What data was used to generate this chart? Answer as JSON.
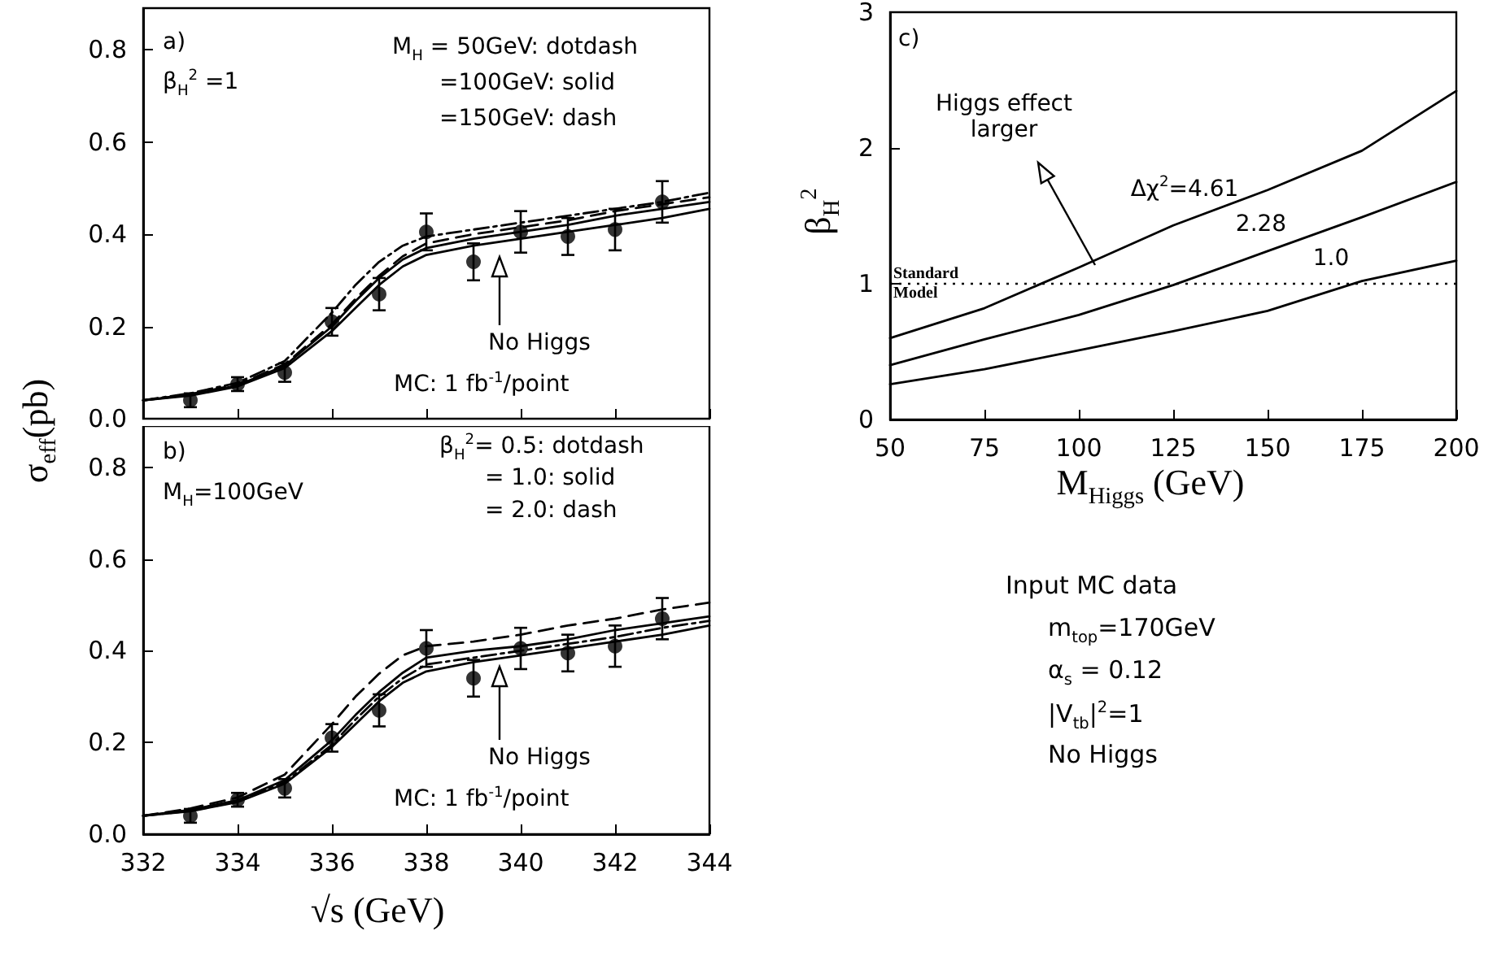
{
  "chart_data": [
    {
      "type": "line",
      "xlim": [
        332,
        344
      ],
      "xticks": [
        332,
        334,
        336,
        338,
        340,
        342,
        344
      ],
      "ylim": [
        0,
        0.89
      ],
      "yticks": [
        {
          "value": 0,
          "label": "0.0"
        },
        0.2,
        0.4,
        0.6,
        0.8
      ],
      "ylabel": "σ$_{eff}$(pb)",
      "tick_labels": "y",
      "annotations": [
        "a)",
        "β$_{H}$$^{2}$ =1",
        "M$_{H}$ = 50GeV: dotdash",
        "=100GeV: solid",
        "=150GeV: dash",
        "No Higgs",
        "MC: 1 fb$^{-1}$/point"
      ],
      "series": [
        {
          "type": "line",
          "line_style": "dashdot",
          "color": "#000000",
          "x": [
            332,
            333,
            334,
            335,
            336,
            336.5,
            337,
            337.5,
            338,
            339,
            340,
            341,
            342,
            343,
            344
          ],
          "values": [
            0.04,
            0.055,
            0.078,
            0.125,
            0.23,
            0.29,
            0.34,
            0.375,
            0.395,
            0.41,
            0.425,
            0.44,
            0.455,
            0.47,
            0.49
          ]
        },
        {
          "type": "line",
          "line_style": "solid",
          "color": "#000000",
          "x": [
            332,
            333,
            334,
            335,
            336,
            336.5,
            337,
            337.5,
            338,
            339,
            340,
            341,
            342,
            343,
            344
          ],
          "values": [
            0.04,
            0.052,
            0.072,
            0.115,
            0.2,
            0.255,
            0.305,
            0.345,
            0.37,
            0.39,
            0.405,
            0.42,
            0.44,
            0.455,
            0.47
          ]
        },
        {
          "type": "line",
          "line_style": "dashed",
          "color": "#000000",
          "x": [
            332,
            333,
            334,
            335,
            336,
            336.5,
            337,
            337.5,
            338,
            339,
            340,
            341,
            342,
            343,
            344
          ],
          "values": [
            0.04,
            0.053,
            0.074,
            0.118,
            0.205,
            0.26,
            0.31,
            0.352,
            0.38,
            0.4,
            0.415,
            0.43,
            0.45,
            0.465,
            0.48
          ]
        },
        {
          "type": "line",
          "line_style": "solid",
          "color": "#000000",
          "x": [
            332,
            333,
            334,
            335,
            336,
            336.5,
            337,
            337.5,
            338,
            339,
            340,
            341,
            342,
            343,
            344
          ],
          "values": [
            0.04,
            0.05,
            0.07,
            0.11,
            0.19,
            0.24,
            0.29,
            0.33,
            0.355,
            0.375,
            0.39,
            0.405,
            0.42,
            0.435,
            0.455
          ]
        },
        {
          "type": "scatter",
          "marker": "circle",
          "color": "#000000",
          "x": [
            333,
            334,
            335,
            336,
            337,
            338,
            339,
            340,
            341,
            342,
            343
          ],
          "values": [
            0.04,
            0.075,
            0.1,
            0.21,
            0.27,
            0.405,
            0.34,
            0.405,
            0.395,
            0.41,
            0.47
          ],
          "errors": [
            0.015,
            0.015,
            0.02,
            0.03,
            0.035,
            0.04,
            0.04,
            0.045,
            0.04,
            0.045,
            0.045
          ]
        }
      ]
    },
    {
      "type": "line",
      "xlim": [
        332,
        344
      ],
      "xticks": [
        332,
        334,
        336,
        338,
        340,
        342,
        344
      ],
      "ylim": [
        0,
        0.89
      ],
      "yticks": [
        {
          "value": 0,
          "label": "0.0"
        },
        0.2,
        0.4,
        0.6,
        0.8
      ],
      "xlabel": "√s (GeV)",
      "annotations": [
        "b)",
        "M$_{H}$=100GeV",
        "β$_{H}$$^{2}$= 0.5: dotdash",
        "= 1.0: solid",
        "= 2.0: dash",
        "No Higgs",
        "MC: 1 fb$^{-1}$/point"
      ],
      "series": [
        {
          "type": "line",
          "line_style": "dashdot",
          "color": "#000000",
          "x": [
            332,
            333,
            334,
            335,
            336,
            336.5,
            337,
            337.5,
            338,
            339,
            340,
            341,
            342,
            343,
            344
          ],
          "values": [
            0.04,
            0.051,
            0.071,
            0.113,
            0.195,
            0.25,
            0.3,
            0.34,
            0.37,
            0.385,
            0.4,
            0.415,
            0.43,
            0.45,
            0.465
          ]
        },
        {
          "type": "line",
          "line_style": "solid",
          "color": "#000000",
          "x": [
            332,
            333,
            334,
            335,
            336,
            336.5,
            337,
            337.5,
            338,
            339,
            340,
            341,
            342,
            343,
            344
          ],
          "values": [
            0.04,
            0.053,
            0.074,
            0.118,
            0.205,
            0.26,
            0.31,
            0.352,
            0.385,
            0.4,
            0.41,
            0.425,
            0.445,
            0.46,
            0.475
          ]
        },
        {
          "type": "line",
          "line_style": "dashed",
          "color": "#000000",
          "x": [
            332,
            333,
            334,
            335,
            336,
            336.5,
            337,
            337.5,
            338,
            339,
            340,
            341,
            342,
            343,
            344
          ],
          "values": [
            0.04,
            0.056,
            0.08,
            0.13,
            0.24,
            0.3,
            0.35,
            0.39,
            0.41,
            0.42,
            0.435,
            0.455,
            0.47,
            0.49,
            0.505
          ]
        },
        {
          "type": "line",
          "line_style": "solid",
          "color": "#000000",
          "x": [
            332,
            333,
            334,
            335,
            336,
            336.5,
            337,
            337.5,
            338,
            339,
            340,
            341,
            342,
            343,
            344
          ],
          "values": [
            0.04,
            0.05,
            0.07,
            0.11,
            0.19,
            0.24,
            0.29,
            0.33,
            0.355,
            0.375,
            0.39,
            0.405,
            0.42,
            0.435,
            0.455
          ]
        },
        {
          "type": "scatter",
          "marker": "circle",
          "color": "#000000",
          "x": [
            333,
            334,
            335,
            336,
            337,
            338,
            339,
            340,
            341,
            342,
            343
          ],
          "values": [
            0.04,
            0.075,
            0.1,
            0.21,
            0.27,
            0.405,
            0.34,
            0.405,
            0.395,
            0.41,
            0.47
          ],
          "errors": [
            0.015,
            0.015,
            0.02,
            0.03,
            0.035,
            0.04,
            0.04,
            0.045,
            0.04,
            0.045,
            0.045
          ]
        }
      ]
    },
    {
      "type": "line",
      "xlim": [
        50,
        200
      ],
      "xticks": [
        50,
        75,
        100,
        125,
        150,
        175,
        200
      ],
      "ylim": [
        0,
        3
      ],
      "yticks": [
        0,
        1,
        2,
        3
      ],
      "xlabel": "M$_{Higgs}$ (GeV)",
      "ylabel": "β$_{H}$$^{2}$",
      "annotations": [
        "c)",
        "Higgs effect larger"
      ],
      "ref_lines": [
        {
          "axis": "y",
          "value": 1,
          "label": "Standard Model",
          "line_style": "dotted",
          "color": "#000000"
        }
      ],
      "series": [
        {
          "name": "Δχ$^{2}$=4.61",
          "line_style": "solid",
          "color": "#000000",
          "x": [
            50,
            75,
            100,
            125,
            150,
            175,
            200
          ],
          "values": [
            0.6,
            0.82,
            1.12,
            1.43,
            1.69,
            1.98,
            2.42
          ]
        },
        {
          "name": "2.28",
          "line_style": "solid",
          "color": "#000000",
          "x": [
            50,
            75,
            100,
            125,
            150,
            175,
            200
          ],
          "values": [
            0.4,
            0.59,
            0.77,
            0.99,
            1.24,
            1.49,
            1.75
          ]
        },
        {
          "name": "1.0",
          "line_style": "solid",
          "color": "#000000",
          "x": [
            50,
            75,
            100,
            125,
            150,
            175,
            200
          ],
          "values": [
            0.26,
            0.37,
            0.51,
            0.65,
            0.8,
            1.02,
            1.17
          ]
        }
      ]
    },
    {
      "type": "other",
      "title": "Input MC data",
      "annotations": [
        "m$_{top}$=170GeV",
        "α$_{s}$ = 0.12",
        "|V$_{tb}$|$^{2}$=1",
        "No Higgs"
      ]
    }
  ]
}
